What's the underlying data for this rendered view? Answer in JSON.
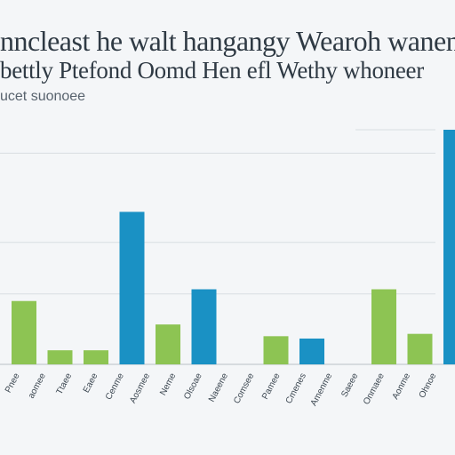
{
  "title_line1": "nncleast he walt hangangy Wearoh wanener",
  "title_line2": "bettly Ptefond Oomd Hen efl Wethy whoneer",
  "subtitle": "ucet suonoee",
  "colors": {
    "blue": "#1a91c4",
    "green": "#8dc453",
    "grid": "#d8dde2",
    "axis": "#b9c0c6",
    "tick_text": "#3d4852"
  },
  "chart_data": {
    "type": "bar",
    "title": "",
    "xlabel": "",
    "ylabel": "",
    "ylim": [
      0,
      100
    ],
    "grid": true,
    "legend": "none",
    "categories": [
      "c1",
      "c2",
      "c3",
      "c4",
      "c5",
      "c6",
      "c7",
      "c8",
      "c9",
      "c10",
      "c11",
      "c12",
      "c13",
      "c14",
      "c15",
      "c16",
      "c17"
    ],
    "tick_labels": [
      "Pnee",
      "aomee",
      "Ttaee",
      "Eaee",
      "Cenme",
      "Aosmee",
      "Neme",
      "Olsoae",
      "Naeene",
      "Comsee",
      "Pamee",
      "Cmenes",
      "Amenme",
      "Saeee",
      "Onmaee",
      "Aonme",
      "Ohnoe"
    ],
    "bars": [
      {
        "slot": 0,
        "value": 27,
        "color": "green"
      },
      {
        "slot": 1,
        "value": 6,
        "color": "green"
      },
      {
        "slot": 2,
        "value": 6,
        "color": "green"
      },
      {
        "slot": 3,
        "value": 65,
        "color": "blue"
      },
      {
        "slot": 4,
        "value": 17,
        "color": "green"
      },
      {
        "slot": 5,
        "value": 32,
        "color": "blue"
      },
      {
        "slot": 7,
        "value": 12,
        "color": "green"
      },
      {
        "slot": 8,
        "value": 11,
        "color": "blue"
      },
      {
        "slot": 10,
        "value": 32,
        "color": "green"
      },
      {
        "slot": 11,
        "value": 13,
        "color": "green"
      },
      {
        "slot": 12,
        "value": 100,
        "color": "blue"
      }
    ]
  }
}
